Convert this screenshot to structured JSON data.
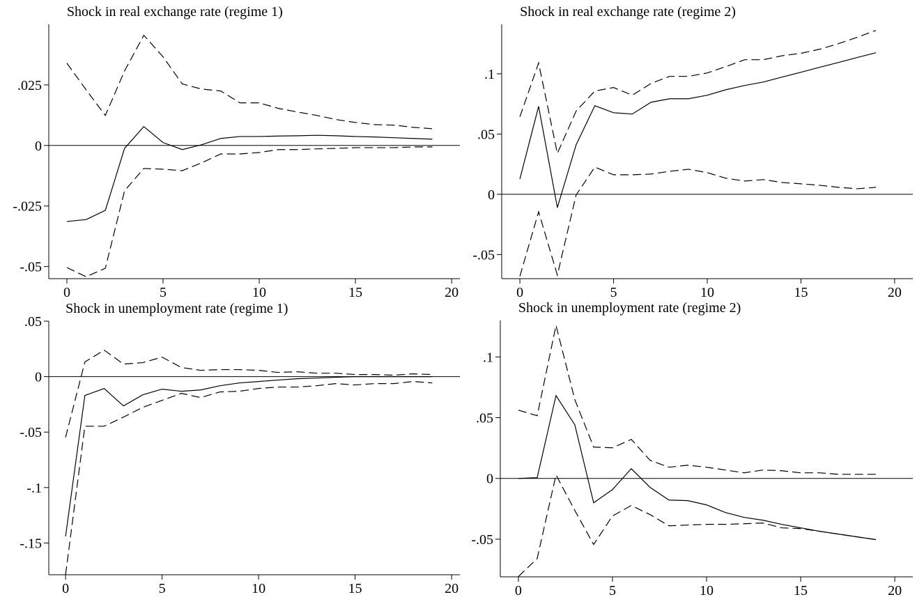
{
  "chart_data": [
    {
      "type": "line",
      "title": "Shock in real exchange rate (regime 1)",
      "x": [
        0,
        1,
        2,
        3,
        4,
        5,
        6,
        7,
        8,
        9,
        10,
        11,
        12,
        13,
        14,
        15,
        16,
        17,
        18,
        19
      ],
      "xlim": [
        -0.94,
        20.43
      ],
      "xticks": [
        0,
        5,
        10,
        15,
        20
      ],
      "ylim": [
        -0.055,
        0.05
      ],
      "yticks": [
        {
          "value": -0.05,
          "label": "-.05"
        },
        {
          "value": -0.025,
          "label": "-.025"
        },
        0,
        {
          "value": 0.025,
          "label": ".025"
        }
      ],
      "hline": 0,
      "series": [
        {
          "color": "#000000",
          "style": "solid",
          "values": [
            -0.0314,
            -0.0306,
            -0.0268,
            -0.0012,
            0.0078,
            0.0012,
            -0.0017,
            0.0003,
            0.0029,
            0.0037,
            0.0037,
            0.0039,
            0.004,
            0.0042,
            0.004,
            0.0037,
            0.0035,
            0.0032,
            0.0029,
            0.0026
          ]
        },
        {
          "color": "#000000",
          "style": "dashed",
          "values": [
            0.034,
            0.023,
            0.0124,
            0.0308,
            0.0455,
            0.0366,
            0.0254,
            0.0233,
            0.0225,
            0.0176,
            0.0176,
            0.0153,
            0.0138,
            0.0124,
            0.0107,
            0.0095,
            0.0086,
            0.0084,
            0.0075,
            0.0069
          ]
        },
        {
          "color": "#000000",
          "style": "dashed",
          "values": [
            -0.0504,
            -0.0542,
            -0.0507,
            -0.0187,
            -0.0095,
            -0.0098,
            -0.0104,
            -0.0072,
            -0.0035,
            -0.0035,
            -0.0029,
            -0.0017,
            -0.0017,
            -0.0014,
            -0.0012,
            -0.0009,
            -0.0009,
            -0.0009,
            -0.0006,
            -0.0006
          ]
        }
      ]
    },
    {
      "type": "line",
      "title": "Shock in real exchange rate (regime 2)",
      "x": [
        0,
        1,
        2,
        3,
        4,
        5,
        6,
        7,
        8,
        9,
        10,
        11,
        12,
        13,
        14,
        15,
        16,
        17,
        18,
        19
      ],
      "xlim": [
        -0.97,
        20.97
      ],
      "xticks": [
        0,
        5,
        10,
        15,
        20
      ],
      "ylim": [
        -0.07,
        0.141
      ],
      "yticks": [
        {
          "value": -0.05,
          "label": "-.05"
        },
        0,
        {
          "value": 0.05,
          "label": ".05"
        },
        {
          "value": 0.1,
          "label": ".1"
        }
      ],
      "hline": 0,
      "series": [
        {
          "color": "#000000",
          "style": "solid",
          "values": [
            0.0127,
            0.073,
            -0.011,
            0.041,
            0.0735,
            0.0677,
            0.0666,
            0.0764,
            0.0793,
            0.0793,
            0.0822,
            0.0868,
            0.0903,
            0.0932,
            0.0973,
            0.1013,
            0.1054,
            0.1094,
            0.1135,
            0.1175
          ]
        },
        {
          "color": "#000000",
          "style": "dashed",
          "values": [
            0.0643,
            0.109,
            0.034,
            0.069,
            0.0857,
            0.0886,
            0.0822,
            0.092,
            0.0979,
            0.0979,
            0.1007,
            0.106,
            0.1117,
            0.1117,
            0.115,
            0.117,
            0.1204,
            0.125,
            0.1303,
            0.136
          ]
        },
        {
          "color": "#000000",
          "style": "dashed",
          "values": [
            -0.068,
            -0.0145,
            -0.067,
            -0.0006,
            0.0226,
            0.0162,
            0.0162,
            0.0168,
            0.0191,
            0.0208,
            0.018,
            0.0133,
            0.011,
            0.0122,
            0.0098,
            0.0087,
            0.0075,
            0.0058,
            0.0046,
            0.0058
          ]
        }
      ]
    },
    {
      "type": "line",
      "title": "Shock in unemployment rate (regime 1)",
      "x": [
        0,
        1,
        2,
        3,
        4,
        5,
        6,
        7,
        8,
        9,
        10,
        11,
        12,
        13,
        14,
        15,
        16,
        17,
        18,
        19
      ],
      "xlim": [
        -0.87,
        20.43
      ],
      "xticks": [
        0,
        5,
        10,
        15,
        20
      ],
      "ylim": [
        -0.1786,
        0.05
      ],
      "yticks": [
        {
          "value": -0.15,
          "label": "-.15"
        },
        {
          "value": -0.1,
          "label": "-.1"
        },
        {
          "value": -0.05,
          "label": "-.05"
        },
        0,
        {
          "value": 0.05,
          "label": ".05"
        }
      ],
      "hline": 0,
      "series": [
        {
          "color": "#000000",
          "style": "solid",
          "values": [
            -0.144,
            -0.017,
            -0.0107,
            -0.0264,
            -0.0164,
            -0.0113,
            -0.0132,
            -0.012,
            -0.0082,
            -0.0057,
            -0.0044,
            -0.0031,
            -0.0019,
            -0.0013,
            -0.0006,
            0,
            0,
            0,
            0,
            0
          ]
        },
        {
          "color": "#000000",
          "style": "dashed",
          "values": [
            -0.0547,
            0.0132,
            0.0239,
            0.0113,
            0.0126,
            0.0176,
            0.0082,
            0.0057,
            0.0063,
            0.0063,
            0.0057,
            0.0038,
            0.0044,
            0.0031,
            0.0031,
            0.0019,
            0.0019,
            0.0013,
            0.0025,
            0.0019
          ]
        },
        {
          "color": "#000000",
          "style": "dashed",
          "values": [
            -0.1786,
            -0.0447,
            -0.0447,
            -0.0365,
            -0.0277,
            -0.0214,
            -0.0151,
            -0.0189,
            -0.0138,
            -0.0132,
            -0.0107,
            -0.0094,
            -0.0094,
            -0.0082,
            -0.0063,
            -0.0075,
            -0.0063,
            -0.0063,
            -0.0044,
            -0.0057
          ]
        }
      ]
    },
    {
      "type": "line",
      "title": "Shock in unemployment rate (regime 2)",
      "x": [
        0,
        1,
        2,
        3,
        4,
        5,
        6,
        7,
        8,
        9,
        10,
        11,
        12,
        13,
        14,
        15,
        16,
        17,
        18,
        19
      ],
      "xlim": [
        -0.96,
        20.96
      ],
      "xticks": [
        0,
        5,
        10,
        15,
        20
      ],
      "ylim": [
        -0.081,
        0.13
      ],
      "yticks": [
        {
          "value": -0.05,
          "label": "-.05"
        },
        0,
        {
          "value": 0.05,
          "label": ".05"
        },
        {
          "value": 0.1,
          "label": ".1"
        }
      ],
      "hline": 0,
      "series": [
        {
          "color": "#000000",
          "style": "solid",
          "values": [
            0,
            0.0006,
            0.0682,
            0.0441,
            -0.0201,
            -0.0092,
            0.008,
            -0.0074,
            -0.0178,
            -0.0183,
            -0.0218,
            -0.0281,
            -0.0321,
            -0.0344,
            -0.0378,
            -0.0407,
            -0.0435,
            -0.0458,
            -0.0481,
            -0.0504
          ]
        },
        {
          "color": "#000000",
          "style": "dashed",
          "values": [
            0.0562,
            0.0516,
            0.126,
            0.0648,
            0.0258,
            0.0252,
            0.0321,
            0.0149,
            0.0092,
            0.0109,
            0.0092,
            0.0069,
            0.0046,
            0.0069,
            0.0063,
            0.0046,
            0.0046,
            0.0034,
            0.0034,
            0.0034
          ]
        },
        {
          "color": "#000000",
          "style": "dashed",
          "values": [
            -0.0808,
            -0.0659,
            0.0029,
            -0.0264,
            -0.0544,
            -0.0309,
            -0.0223,
            -0.0298,
            -0.039,
            -0.0384,
            -0.0378,
            -0.0378,
            -0.0373,
            -0.0367,
            -0.0407,
            -0.0413,
            -0.0435,
            -0.0458,
            -0.0481,
            -0.0504
          ]
        }
      ]
    }
  ]
}
